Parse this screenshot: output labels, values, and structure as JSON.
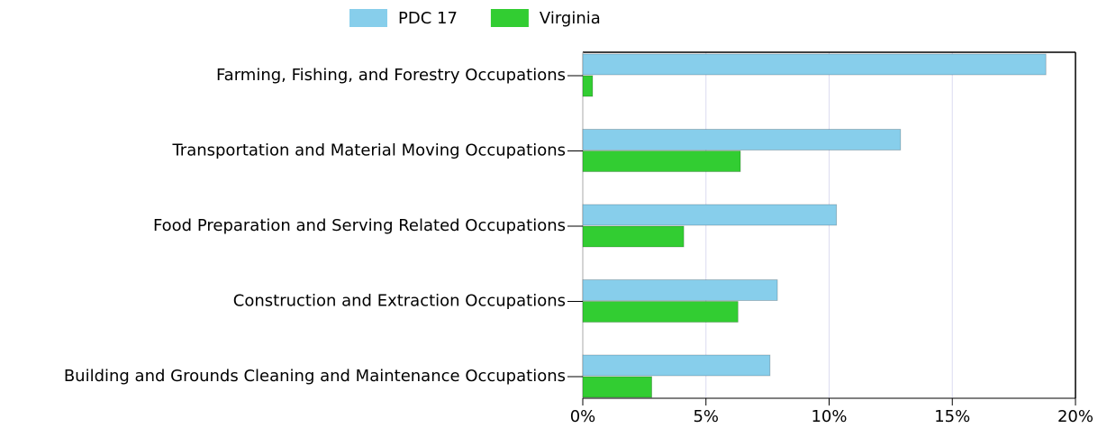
{
  "chart_data": {
    "type": "bar",
    "orientation": "horizontal",
    "categories": [
      "Farming, Fishing, and Forestry Occupations",
      "Transportation and Material Moving Occupations",
      "Food Preparation and Serving Related Occupations",
      "Construction and Extraction Occupations",
      "Building and Grounds Cleaning and Maintenance Occupations"
    ],
    "series": [
      {
        "name": "PDC 17",
        "color": "#87ceeb",
        "values": [
          18.8,
          12.9,
          10.3,
          7.9,
          7.6
        ]
      },
      {
        "name": "Virginia",
        "color": "#32cd32",
        "values": [
          0.4,
          6.4,
          4.1,
          6.3,
          2.8
        ]
      }
    ],
    "xlim": [
      0,
      20
    ],
    "xticks": [
      {
        "value": 0,
        "label": "0%"
      },
      {
        "value": 5,
        "label": "5%"
      },
      {
        "value": 10,
        "label": "10%"
      },
      {
        "value": 15,
        "label": "15%"
      },
      {
        "value": 20,
        "label": "20%"
      }
    ],
    "grid": true,
    "legend": "top"
  }
}
